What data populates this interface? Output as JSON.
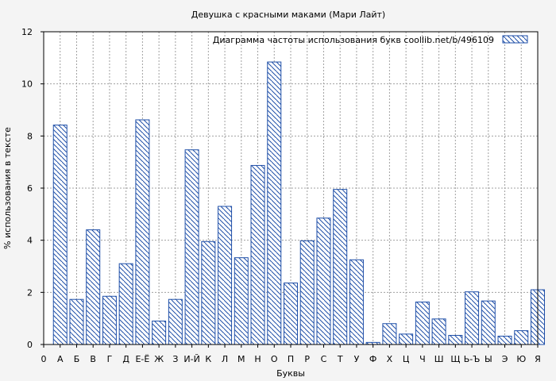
{
  "chart_data": {
    "type": "bar",
    "title": "Девушка с красными маками (Мари Лайт)",
    "xlabel": "Буквы",
    "ylabel": "% использования в тексте",
    "ylim": [
      0,
      12
    ],
    "yticks": [
      0,
      2,
      4,
      6,
      8,
      10,
      12
    ],
    "x_tick_labels": [
      "0",
      "А",
      "Б",
      "В",
      "Г",
      "Д",
      "Е-Ё",
      "Ж",
      "З",
      "И-Й",
      "К",
      "Л",
      "М",
      "Н",
      "О",
      "П",
      "Р",
      "С",
      "Т",
      "У",
      "Ф",
      "Х",
      "Ц",
      "Ч",
      "Ш",
      "Щ",
      "Ь-Ъ",
      "Ы",
      "Э",
      "Ю",
      "Я"
    ],
    "categories": [
      "А",
      "Б",
      "В",
      "Г",
      "Д",
      "Е-Ё",
      "Ж",
      "З",
      "И-Й",
      "К",
      "Л",
      "М",
      "Н",
      "О",
      "П",
      "Р",
      "С",
      "Т",
      "У",
      "Ф",
      "Х",
      "Ц",
      "Ч",
      "Ш",
      "Щ",
      "Ь-Ъ",
      "Ы",
      "Э",
      "Ю",
      "Я"
    ],
    "series": [
      {
        "name": "Диаграмма частоты использования букв  coollib.net/b/496109",
        "values": [
          8.42,
          1.73,
          4.4,
          1.85,
          3.1,
          8.62,
          0.9,
          1.73,
          7.47,
          3.95,
          5.3,
          3.33,
          6.87,
          10.84,
          2.36,
          3.98,
          4.85,
          5.95,
          3.25,
          0.08,
          0.8,
          0.4,
          1.63,
          0.98,
          0.35,
          2.02,
          1.67,
          0.32,
          0.53,
          2.1
        ]
      }
    ],
    "legend": "top-right",
    "grid": true,
    "colors": {
      "bar_stroke": "#1f4fa8",
      "bar_hatch": "#1f4fa8",
      "bar_fill": "#ffffff",
      "grid": "#a0a0a0",
      "axis": "#000000",
      "background": "#f4f4f4"
    }
  }
}
